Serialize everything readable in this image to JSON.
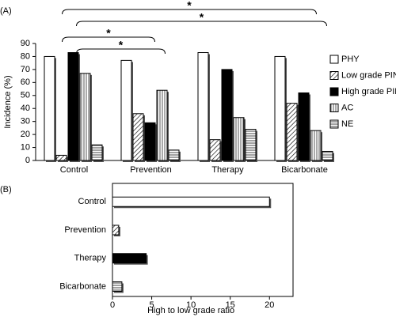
{
  "chart_data": [
    {
      "type": "bar",
      "panel_label": "(A)",
      "ylabel": "Incidence (%)",
      "categories": [
        "Control",
        "Prevention",
        "Therapy",
        "Bicarbonate"
      ],
      "series": [
        {
          "name": "PHY",
          "color": "#ffffff",
          "hatch": "none",
          "values": [
            80,
            77,
            83,
            80
          ]
        },
        {
          "name": "Low grade PIN",
          "color": "#ffffff",
          "hatch": "diagonal",
          "values": [
            4,
            36,
            16,
            44
          ]
        },
        {
          "name": "High grade PIN",
          "color": "#000000",
          "hatch": "none",
          "values": [
            83,
            29,
            70,
            52
          ]
        },
        {
          "name": "AC",
          "color": "#ffffff",
          "hatch": "vertical",
          "values": [
            67,
            54,
            33,
            23
          ]
        },
        {
          "name": "NE",
          "color": "#ffffff",
          "hatch": "horizontal",
          "values": [
            12,
            8,
            24,
            7
          ]
        }
      ],
      "ylim": [
        0,
        90
      ],
      "yticks": [
        0,
        10,
        20,
        30,
        40,
        50,
        60,
        70,
        80,
        90
      ],
      "annotations": [
        {
          "text": "*",
          "from": "Control",
          "to": "Bicarbonate"
        },
        {
          "text": "*",
          "from": "Control",
          "to": "Bicarbonate"
        },
        {
          "text": "*",
          "from": "Control",
          "to": "Prevention"
        },
        {
          "text": "*",
          "from": "Control",
          "to": "Prevention"
        }
      ]
    },
    {
      "type": "barh",
      "panel_label": "(B)",
      "xlabel": "High to low grade ratio",
      "categories": [
        "Control",
        "Prevention",
        "Therapy",
        "Bicarbonate"
      ],
      "values": [
        20,
        0.8,
        4.3,
        1.2
      ],
      "colors": [
        "#ffffff",
        "#ffffff",
        "#000000",
        "#ffffff"
      ],
      "hatches": [
        "none",
        "diagonal",
        "none",
        "horizontal"
      ],
      "xlim": [
        0,
        23
      ],
      "xticks": [
        0,
        5,
        10,
        15,
        20
      ]
    }
  ]
}
